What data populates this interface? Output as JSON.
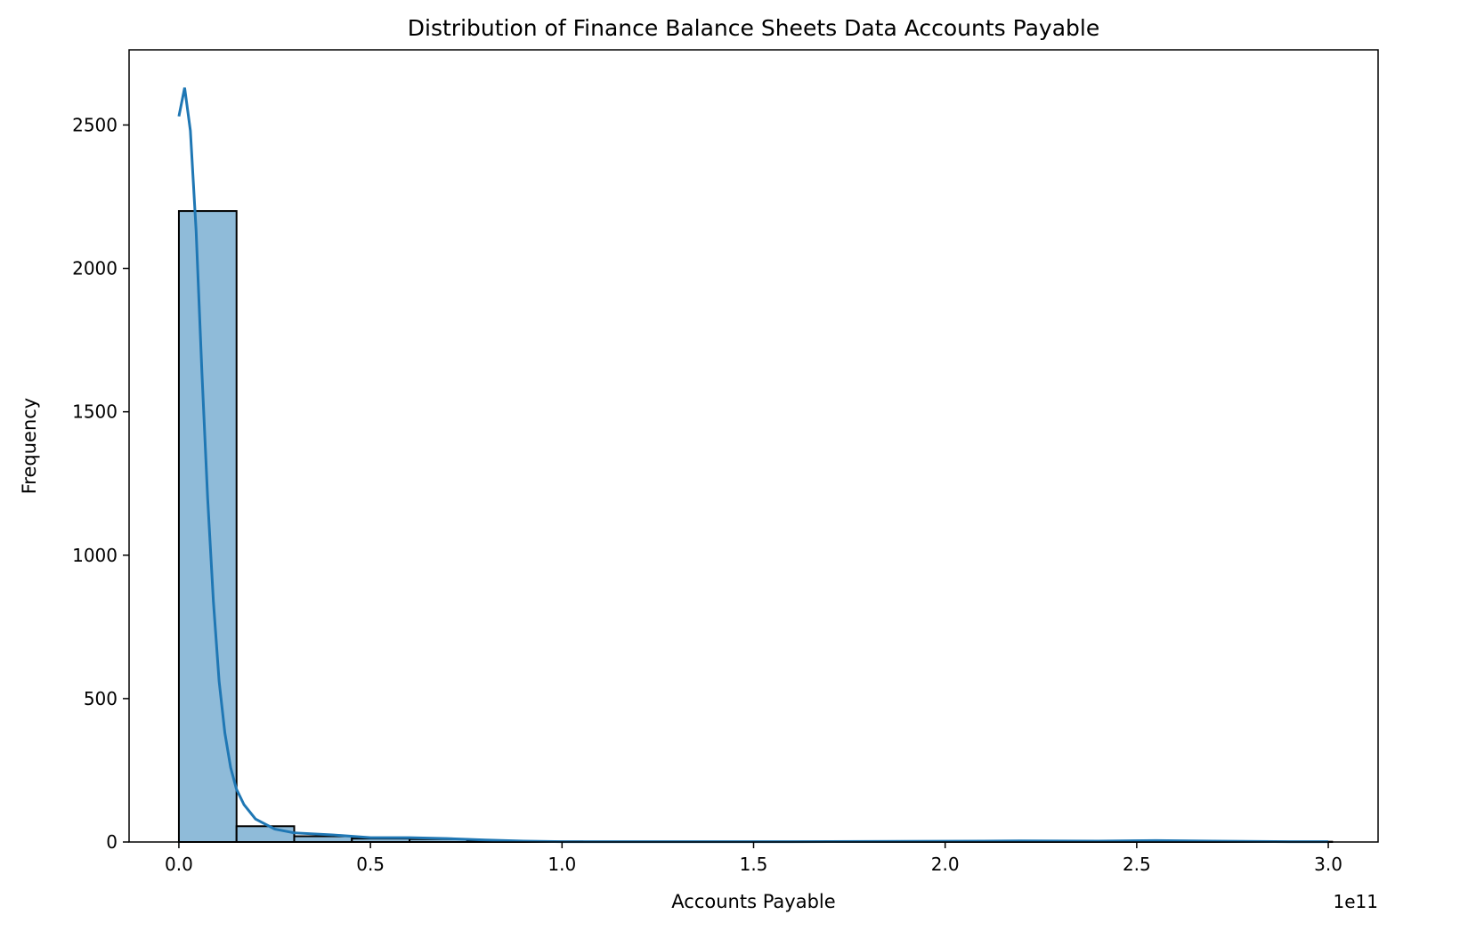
{
  "chart_data": {
    "type": "bar",
    "title": "Distribution of Finance Balance Sheets Data Accounts Payable",
    "xlabel": "Accounts Payable",
    "ylabel": "Frequency",
    "x_offset_text": "1e11",
    "xlim": [
      -0.13,
      3.13
    ],
    "ylim": [
      0,
      2762
    ],
    "x_ticks": [
      0.0,
      0.5,
      1.0,
      1.5,
      2.0,
      2.5,
      3.0
    ],
    "x_tick_labels": [
      "0.0",
      "0.5",
      "1.0",
      "1.5",
      "2.0",
      "2.5",
      "3.0"
    ],
    "y_ticks": [
      0,
      500,
      1000,
      1500,
      2000,
      2500
    ],
    "y_tick_labels": [
      "0",
      "500",
      "1000",
      "1500",
      "2000",
      "2500"
    ],
    "bins": {
      "start": 0.0,
      "width": 0.1505,
      "counts": [
        2200,
        55,
        20,
        12,
        10,
        3,
        2,
        1,
        1,
        1,
        1,
        1,
        1,
        1,
        1,
        1,
        1,
        1,
        1,
        1
      ]
    },
    "kde": {
      "x": [
        0.0,
        0.015,
        0.03,
        0.045,
        0.06,
        0.075,
        0.09,
        0.105,
        0.12,
        0.135,
        0.15,
        0.17,
        0.2,
        0.25,
        0.3,
        0.4,
        0.5,
        0.6,
        0.7,
        0.8,
        0.9,
        1.0,
        1.2,
        1.5,
        1.8,
        2.1,
        2.2,
        2.4,
        2.55,
        2.7,
        2.9,
        3.0
      ],
      "y": [
        2530,
        2630,
        2480,
        2130,
        1640,
        1200,
        840,
        560,
        380,
        260,
        185,
        130,
        80,
        45,
        32,
        25,
        15,
        15,
        12,
        7,
        3,
        1,
        1,
        1,
        2,
        3,
        4,
        3,
        5,
        3,
        1,
        1
      ]
    },
    "colors": {
      "bar_fill": "#8fbbd9",
      "bar_edge": "#000000",
      "kde_line": "#1f77b4"
    },
    "grid": false,
    "legend": "none"
  }
}
